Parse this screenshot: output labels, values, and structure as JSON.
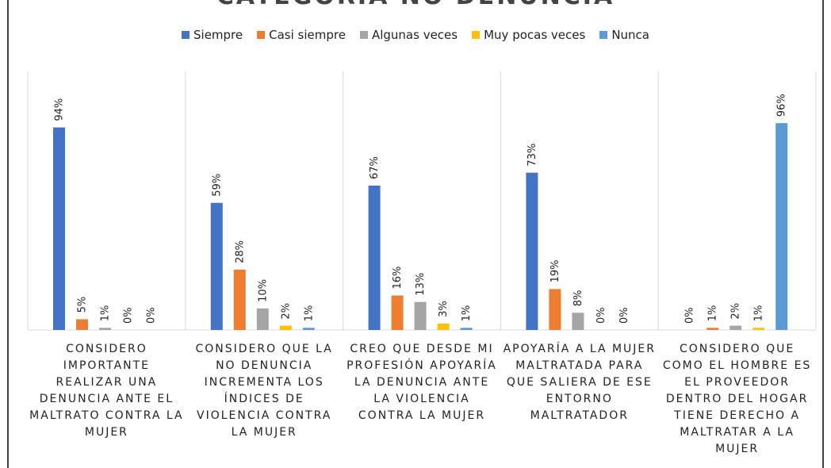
{
  "chart_data": {
    "type": "bar",
    "title": "CATEGORÍA NO DENUNCIA",
    "categories": [
      "CONSIDERO IMPORTANTE REALIZAR UNA DENUNCIA ANTE EL MALTRATO CONTRA LA MUJER",
      "CONSIDERO QUE LA NO DENUNCIA INCREMENTA LOS ÍNDICES DE VIOLENCIA CONTRA LA MUJER",
      "CREO QUE DESDE MI PROFESIÓN APOYARÍA LA DENUNCIA ANTE LA VIOLENCIA CONTRA LA MUJER",
      "APOYARÍA A LA MUJER MALTRATADA PARA QUE SALIERA DE ESE ENTORNO MALTRATADOR",
      "CONSIDERO QUE COMO EL HOMBRE ES EL PROVEEDOR DENTRO DEL HOGAR TIENE DERECHO A MALTRATAR A LA MUJER"
    ],
    "series": [
      {
        "name": "Siempre",
        "color": "#4472c4",
        "values": [
          94,
          59,
          67,
          73,
          0
        ],
        "value_labels": [
          "94%",
          "59%",
          "67%",
          "73%",
          "0%"
        ]
      },
      {
        "name": "Casi siempre",
        "color": "#ed7d31",
        "values": [
          5,
          28,
          16,
          19,
          1
        ],
        "value_labels": [
          "5%",
          "28%",
          "16%",
          "19%",
          "1%"
        ]
      },
      {
        "name": "Algunas veces",
        "color": "#a5a5a5",
        "values": [
          1,
          10,
          13,
          8,
          2
        ],
        "value_labels": [
          "1%",
          "10%",
          "13%",
          "8%",
          "2%"
        ]
      },
      {
        "name": "Muy pocas veces",
        "color": "#ffc000",
        "values": [
          0,
          2,
          3,
          0,
          1
        ],
        "value_labels": [
          "0%",
          "2%",
          "3%",
          "0%",
          "1%"
        ]
      },
      {
        "name": "Nunca",
        "color": "#5b9bd5",
        "values": [
          0,
          1,
          1,
          0,
          96
        ],
        "value_labels": [
          "0%",
          "1%",
          "1%",
          "0%",
          "96%"
        ]
      }
    ],
    "ylim": [
      0,
      120
    ],
    "legend": "top"
  }
}
